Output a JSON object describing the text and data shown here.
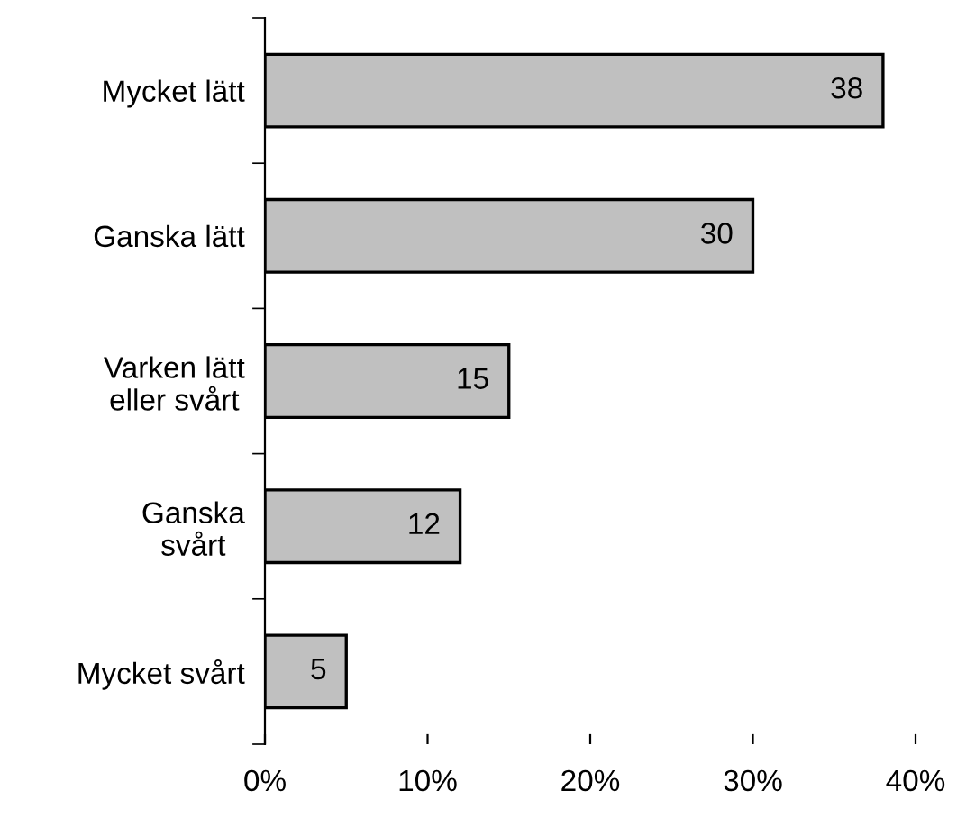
{
  "chart_data": {
    "type": "bar",
    "orientation": "horizontal",
    "categories": [
      "Mycket lätt",
      "Ganska lätt",
      "Varken lätt\neller svårt",
      "Ganska\nsvårt",
      "Mycket svårt"
    ],
    "values": [
      38,
      30,
      15,
      12,
      5
    ],
    "color": "#c0c0c0",
    "xlim": [
      0,
      40
    ],
    "xticks": [
      {
        "value": 0,
        "label": "0%"
      },
      {
        "value": 10,
        "label": "10%"
      },
      {
        "value": 20,
        "label": "20%"
      },
      {
        "value": 30,
        "label": "30%"
      },
      {
        "value": 40,
        "label": "40%"
      }
    ],
    "data_labels": true,
    "grid": false,
    "legend": false
  }
}
